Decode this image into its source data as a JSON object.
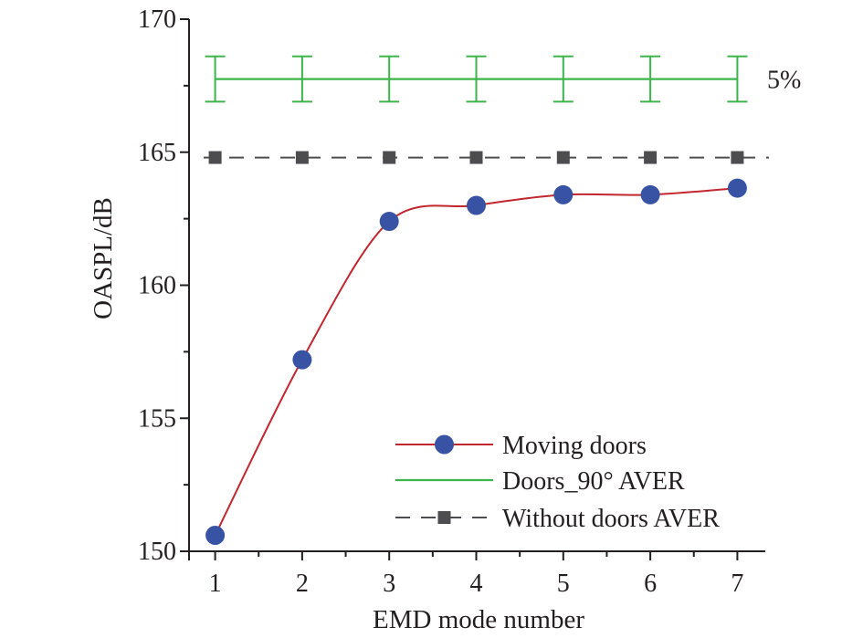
{
  "chart_data": {
    "type": "line",
    "xlabel": "EMD mode number",
    "ylabel": "OASPL/dB",
    "xlim": [
      0.7,
      7.3
    ],
    "ylim": [
      150,
      170
    ],
    "xticks": [
      1,
      2,
      3,
      4,
      5,
      6,
      7
    ],
    "yticks": [
      150,
      155,
      160,
      165,
      170
    ],
    "grid": false,
    "legend_position": "bottom-right",
    "series": [
      {
        "name": "Moving doors",
        "style": "smooth-line-with-circles",
        "color": "#c1272d",
        "marker_color": "#3853a4",
        "x": [
          1,
          2,
          3,
          4,
          5,
          6,
          7
        ],
        "y": [
          150.6,
          157.2,
          162.4,
          163.0,
          163.4,
          163.4,
          163.65
        ]
      },
      {
        "name": "Doors_90° AVER",
        "style": "line-with-errorbars",
        "color": "#3cb54a",
        "x": [
          1,
          2,
          3,
          4,
          5,
          6,
          7
        ],
        "y": [
          167.75,
          167.75,
          167.75,
          167.75,
          167.75,
          167.75,
          167.75
        ],
        "error_upper": [
          168.6,
          168.6,
          168.6,
          168.6,
          168.6,
          168.6,
          168.6
        ],
        "error_lower": [
          166.9,
          166.9,
          166.9,
          166.9,
          166.9,
          166.9,
          166.9
        ]
      },
      {
        "name": "Without doors AVER",
        "style": "dashed-line-with-squares",
        "color": "#4d4d4f",
        "x": [
          1,
          2,
          3,
          4,
          5,
          6,
          7
        ],
        "y": [
          164.8,
          164.8,
          164.8,
          164.8,
          164.8,
          164.8,
          164.8
        ]
      }
    ],
    "annotations": [
      {
        "text": "5%",
        "x": 7.3,
        "y": 167.75
      }
    ]
  }
}
